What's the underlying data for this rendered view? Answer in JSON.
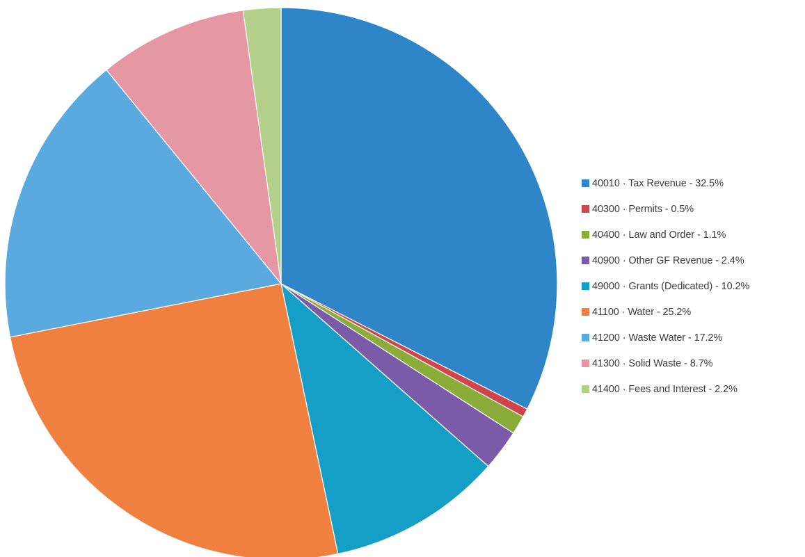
{
  "chart_data": {
    "type": "pie",
    "title": "",
    "legend_position": "right",
    "start_angle_deg": 0,
    "direction": "clockwise",
    "slices": [
      {
        "label": "40010 · Tax Revenue - 32.5%",
        "value": 32.5,
        "color": "#2e86c8"
      },
      {
        "label": "40300 · Permits - 0.5%",
        "value": 0.5,
        "color": "#d0454b"
      },
      {
        "label": "40400 · Law and Order - 1.1%",
        "value": 1.1,
        "color": "#8aad3a"
      },
      {
        "label": "40900 · Other GF Revenue - 2.4%",
        "value": 2.4,
        "color": "#7b5ba8"
      },
      {
        "label": "49000 · Grants  (Dedicated) - 10.2%",
        "value": 10.2,
        "color": "#169fc6"
      },
      {
        "label": "41100 · Water - 25.2%",
        "value": 25.2,
        "color": "#f08040"
      },
      {
        "label": "41200 · Waste Water - 17.2%",
        "value": 17.2,
        "color": "#5aaae0"
      },
      {
        "label": "41300 · Solid Waste - 8.7%",
        "value": 8.7,
        "color": "#e597a4"
      },
      {
        "label": "41400 · Fees and Interest - 2.2%",
        "value": 2.2,
        "color": "#b3d08a"
      }
    ]
  }
}
